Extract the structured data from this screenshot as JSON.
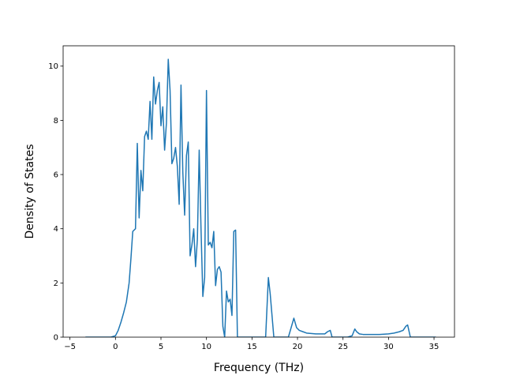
{
  "chart_data": {
    "type": "line",
    "title": "",
    "xlabel": "Frequency (THz)",
    "ylabel": "Density of States",
    "xlim": [
      -5.75,
      37.25
    ],
    "ylim": [
      0,
      10.75
    ],
    "xticks": [
      -5,
      0,
      5,
      10,
      15,
      20,
      25,
      30,
      35
    ],
    "yticks": [
      0,
      2,
      4,
      6,
      8,
      10
    ],
    "grid": false,
    "legend": "none",
    "series": [
      {
        "color": "#1f77b4",
        "x": [
          -3.3,
          -0.5,
          0,
          0.3,
          0.6,
          0.9,
          1.2,
          1.5,
          1.7,
          1.9,
          2.2,
          2.4,
          2.6,
          2.8,
          3.0,
          3.2,
          3.4,
          3.6,
          3.8,
          4.0,
          4.2,
          4.4,
          4.6,
          4.8,
          5.0,
          5.2,
          5.4,
          5.6,
          5.8,
          6.0,
          6.2,
          6.4,
          6.6,
          6.8,
          7.0,
          7.2,
          7.4,
          7.6,
          7.8,
          8.0,
          8.2,
          8.4,
          8.6,
          8.8,
          9.0,
          9.2,
          9.4,
          9.6,
          9.8,
          10.0,
          10.2,
          10.4,
          10.6,
          10.8,
          11.0,
          11.2,
          11.4,
          11.6,
          11.8,
          12.0,
          12.2,
          12.4,
          12.6,
          12.8,
          13.0,
          13.2,
          13.4,
          13.6,
          13.8,
          14.0,
          14.5,
          16.5,
          16.8,
          17.0,
          17.2,
          17.4,
          17.6,
          17.8,
          19.0,
          19.3,
          19.6,
          19.9,
          20.2,
          20.6,
          21.0,
          22.0,
          23.0,
          23.3,
          23.6,
          23.8,
          24.0,
          25.5,
          26.0,
          26.3,
          26.5,
          26.8,
          27.2,
          28.0,
          29.0,
          30.0,
          30.6,
          31.2,
          31.6,
          31.9,
          32.1,
          32.4,
          35.2
        ],
        "y": [
          0.0,
          0.0,
          0.05,
          0.25,
          0.55,
          0.9,
          1.3,
          2.0,
          2.9,
          3.9,
          4.0,
          7.15,
          4.4,
          6.15,
          5.4,
          7.4,
          7.6,
          7.3,
          8.7,
          7.3,
          9.6,
          8.6,
          9.1,
          9.4,
          7.8,
          8.5,
          6.9,
          7.9,
          10.25,
          9.1,
          6.4,
          6.6,
          7.0,
          6.3,
          4.9,
          9.3,
          6.1,
          4.5,
          6.7,
          7.2,
          3.0,
          3.4,
          4.0,
          2.6,
          3.6,
          6.9,
          4.0,
          1.5,
          2.2,
          9.1,
          3.4,
          3.5,
          3.3,
          3.9,
          1.9,
          2.5,
          2.6,
          2.4,
          0.4,
          0.0,
          1.7,
          1.3,
          1.4,
          0.8,
          3.9,
          3.95,
          0.0,
          0.0,
          0.0,
          0.0,
          0.0,
          0.0,
          2.2,
          1.6,
          0.8,
          0.0,
          0.0,
          0.0,
          0.0,
          0.35,
          0.7,
          0.35,
          0.25,
          0.2,
          0.15,
          0.12,
          0.12,
          0.2,
          0.25,
          0.0,
          0.0,
          0.0,
          0.05,
          0.3,
          0.2,
          0.12,
          0.1,
          0.1,
          0.1,
          0.12,
          0.15,
          0.2,
          0.25,
          0.4,
          0.45,
          0.0,
          0.0
        ]
      }
    ]
  }
}
